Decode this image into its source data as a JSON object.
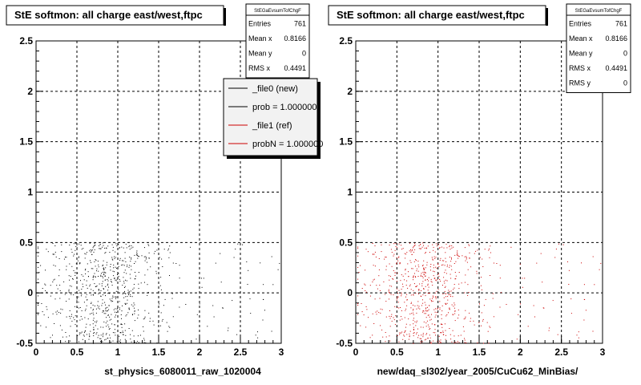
{
  "chart_data": [
    {
      "type": "scatter",
      "title": "StE softmon: all charge east/west,ftpc",
      "xlabel": "st_physics_6080011_raw_1020004",
      "ylabel": "",
      "xlim": [
        0,
        3
      ],
      "ylim": [
        -0.5,
        2.5
      ],
      "x_ticks": [
        "0",
        "0.5",
        "1",
        "1.5",
        "2",
        "2.5",
        "3"
      ],
      "y_ticks": [
        "-0.5",
        "0",
        "0.5",
        "1",
        "1.5",
        "2",
        "2.5"
      ],
      "grid": true,
      "marker_color": "#000000",
      "point_spread": {
        "x_mean": 0.8166,
        "x_rms": 0.4491,
        "y_range": [
          -0.5,
          0.5
        ],
        "entries": 761
      },
      "stats": {
        "title": "StEGaEvsumTofChgF",
        "rows": [
          {
            "label": "Entries",
            "value": "761"
          },
          {
            "label": "Mean x",
            "value": "0.8166"
          },
          {
            "label": "Mean y",
            "value": "0"
          },
          {
            "label": "RMS x",
            "value": "0.4491"
          }
        ]
      },
      "legend": {
        "placement": "top-right",
        "entries": [
          {
            "label": "_file0 (new)",
            "color": "#000000"
          },
          {
            "label": "prob = 1.000000",
            "color": "#000000"
          },
          {
            "label": "_file1 (ref)",
            "color": "#cc0000"
          },
          {
            "label": "probN = 1.000000",
            "color": "#cc0000"
          }
        ]
      }
    },
    {
      "type": "scatter",
      "title": "StE softmon: all charge east/west,ftpc",
      "xlabel": "new/daq_sl302/year_2005/CuCu62_MinBias/",
      "ylabel": "",
      "xlim": [
        0,
        3
      ],
      "ylim": [
        -0.5,
        2.5
      ],
      "x_ticks": [
        "0",
        "0.5",
        "1",
        "1.5",
        "2",
        "2.5",
        "3"
      ],
      "y_ticks": [
        "-0.5",
        "0",
        "0.5",
        "1",
        "1.5",
        "2",
        "2.5"
      ],
      "grid": true,
      "marker_color": "#cc0000",
      "point_spread": {
        "x_mean": 0.8166,
        "x_rms": 0.4491,
        "y_range": [
          -0.5,
          0.5
        ],
        "entries": 761
      },
      "stats": {
        "title": "StEGaEvsumTofChgF",
        "rows": [
          {
            "label": "Entries",
            "value": "761"
          },
          {
            "label": "Mean x",
            "value": "0.8166"
          },
          {
            "label": "Mean y",
            "value": "0"
          },
          {
            "label": "RMS x",
            "value": "0.4491"
          },
          {
            "label": "RMS y",
            "value": "0"
          }
        ]
      }
    }
  ]
}
